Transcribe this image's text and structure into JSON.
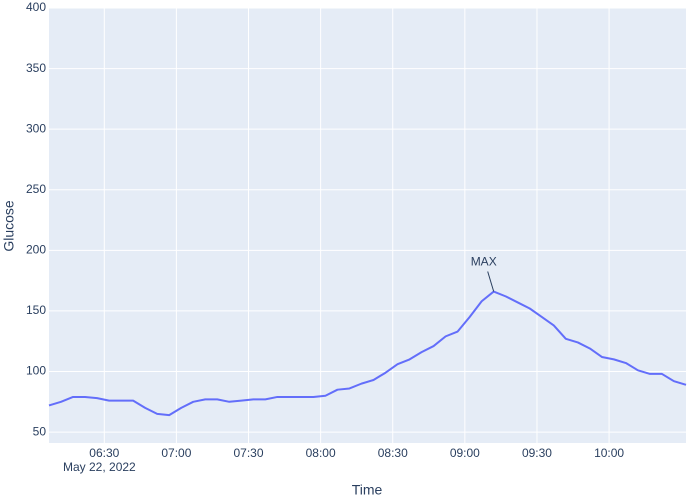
{
  "chart_data": {
    "type": "line",
    "x_title": "Time",
    "y_title": "Glucose",
    "x_date_label": "May 22, 2022",
    "x": [
      "2022-05-22 06:07",
      "2022-05-22 06:12",
      "2022-05-22 06:17",
      "2022-05-22 06:22",
      "2022-05-22 06:27",
      "2022-05-22 06:32",
      "2022-05-22 06:37",
      "2022-05-22 06:42",
      "2022-05-22 06:47",
      "2022-05-22 06:52",
      "2022-05-22 06:57",
      "2022-05-22 07:02",
      "2022-05-22 07:07",
      "2022-05-22 07:12",
      "2022-05-22 07:17",
      "2022-05-22 07:22",
      "2022-05-22 07:27",
      "2022-05-22 07:32",
      "2022-05-22 07:37",
      "2022-05-22 07:42",
      "2022-05-22 07:47",
      "2022-05-22 07:52",
      "2022-05-22 07:57",
      "2022-05-22 08:02",
      "2022-05-22 08:07",
      "2022-05-22 08:12",
      "2022-05-22 08:17",
      "2022-05-22 08:22",
      "2022-05-22 08:27",
      "2022-05-22 08:32",
      "2022-05-22 08:37",
      "2022-05-22 08:42",
      "2022-05-22 08:47",
      "2022-05-22 08:52",
      "2022-05-22 08:57",
      "2022-05-22 09:02",
      "2022-05-22 09:07",
      "2022-05-22 09:12",
      "2022-05-22 09:17",
      "2022-05-22 09:22",
      "2022-05-22 09:27",
      "2022-05-22 09:32",
      "2022-05-22 09:37",
      "2022-05-22 09:42",
      "2022-05-22 09:47",
      "2022-05-22 09:52",
      "2022-05-22 09:57",
      "2022-05-22 10:02",
      "2022-05-22 10:07",
      "2022-05-22 10:12",
      "2022-05-22 10:17",
      "2022-05-22 10:22",
      "2022-05-22 10:27",
      "2022-05-22 10:32"
    ],
    "values": [
      72,
      75,
      79,
      79,
      78,
      76,
      76,
      76,
      70,
      65,
      64,
      70,
      75,
      77,
      77,
      75,
      76,
      77,
      77,
      79,
      79,
      79,
      79,
      80,
      85,
      86,
      90,
      93,
      99,
      106,
      110,
      116,
      121,
      129,
      133,
      145,
      158,
      166,
      162,
      157,
      152,
      145,
      138,
      127,
      124,
      119,
      112,
      110,
      107,
      101,
      98,
      98,
      92,
      89
    ],
    "color": "#636efa",
    "xlim": [
      "2022-05-22 06:07",
      "2022-05-22 10:32"
    ],
    "xticks": [
      {
        "value": "2022-05-22 06:30",
        "label": "06:30"
      },
      {
        "value": "2022-05-22 07:00",
        "label": "07:00"
      },
      {
        "value": "2022-05-22 07:30",
        "label": "07:30"
      },
      {
        "value": "2022-05-22 08:00",
        "label": "08:00"
      },
      {
        "value": "2022-05-22 08:30",
        "label": "08:30"
      },
      {
        "value": "2022-05-22 09:00",
        "label": "09:00"
      },
      {
        "value": "2022-05-22 09:30",
        "label": "09:30"
      },
      {
        "value": "2022-05-22 10:00",
        "label": "10:00"
      }
    ],
    "ylim": [
      41,
      400
    ],
    "yticks": [
      50,
      100,
      150,
      200,
      250,
      300,
      350,
      400
    ],
    "grid": true,
    "annotations": [
      {
        "text": "MAX",
        "x": "2022-05-22 09:12",
        "y": 166
      }
    ]
  }
}
